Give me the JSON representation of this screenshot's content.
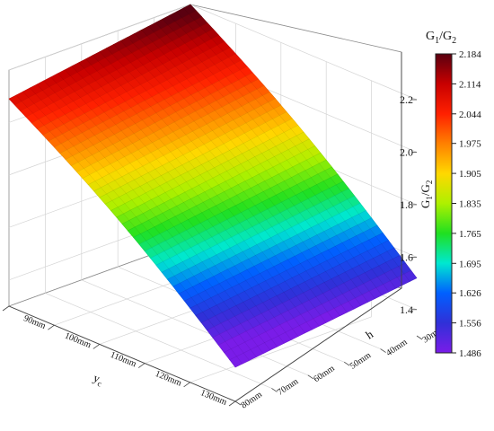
{
  "chart_data": {
    "type": "surface",
    "title": "",
    "zlabel": "G1/G2",
    "zlabel_main": "G",
    "zlabel_sub1": "1",
    "zlabel_sep": "/G",
    "zlabel_sub2": "2",
    "xlabel": "y",
    "xlabel_sub": "c",
    "ylabel": "h",
    "x_ticks": [
      "80mm",
      "90mm",
      "100mm",
      "110mm",
      "120mm",
      "130mm"
    ],
    "y_ticks": [
      "30mm",
      "40mm",
      "50mm",
      "60mm",
      "70mm",
      "80mm"
    ],
    "z_ticks": [
      "1.4",
      "1.6",
      "1.8",
      "2.0",
      "2.2"
    ],
    "zlim": [
      1.3,
      2.2
    ],
    "colorbar_ticks": [
      "2.184",
      "2.114",
      "2.044",
      "1.975",
      "1.905",
      "1.835",
      "1.765",
      "1.695",
      "1.626",
      "1.556",
      "1.486"
    ],
    "colorbar_range": [
      1.486,
      2.184
    ],
    "colormap": [
      "#5a0010",
      "#c80000",
      "#ff2000",
      "#ff8000",
      "#ffd800",
      "#aef000",
      "#20e020",
      "#00e8d0",
      "#0060ff",
      "#3030d8",
      "#7a1ce8"
    ],
    "corner_values": {
      "yc_80mm_h_30mm": 2.2,
      "yc_80mm_h_80mm": 2.09,
      "yc_130mm_h_30mm": 1.52,
      "yc_130mm_h_80mm": 1.43
    },
    "grid": true
  }
}
